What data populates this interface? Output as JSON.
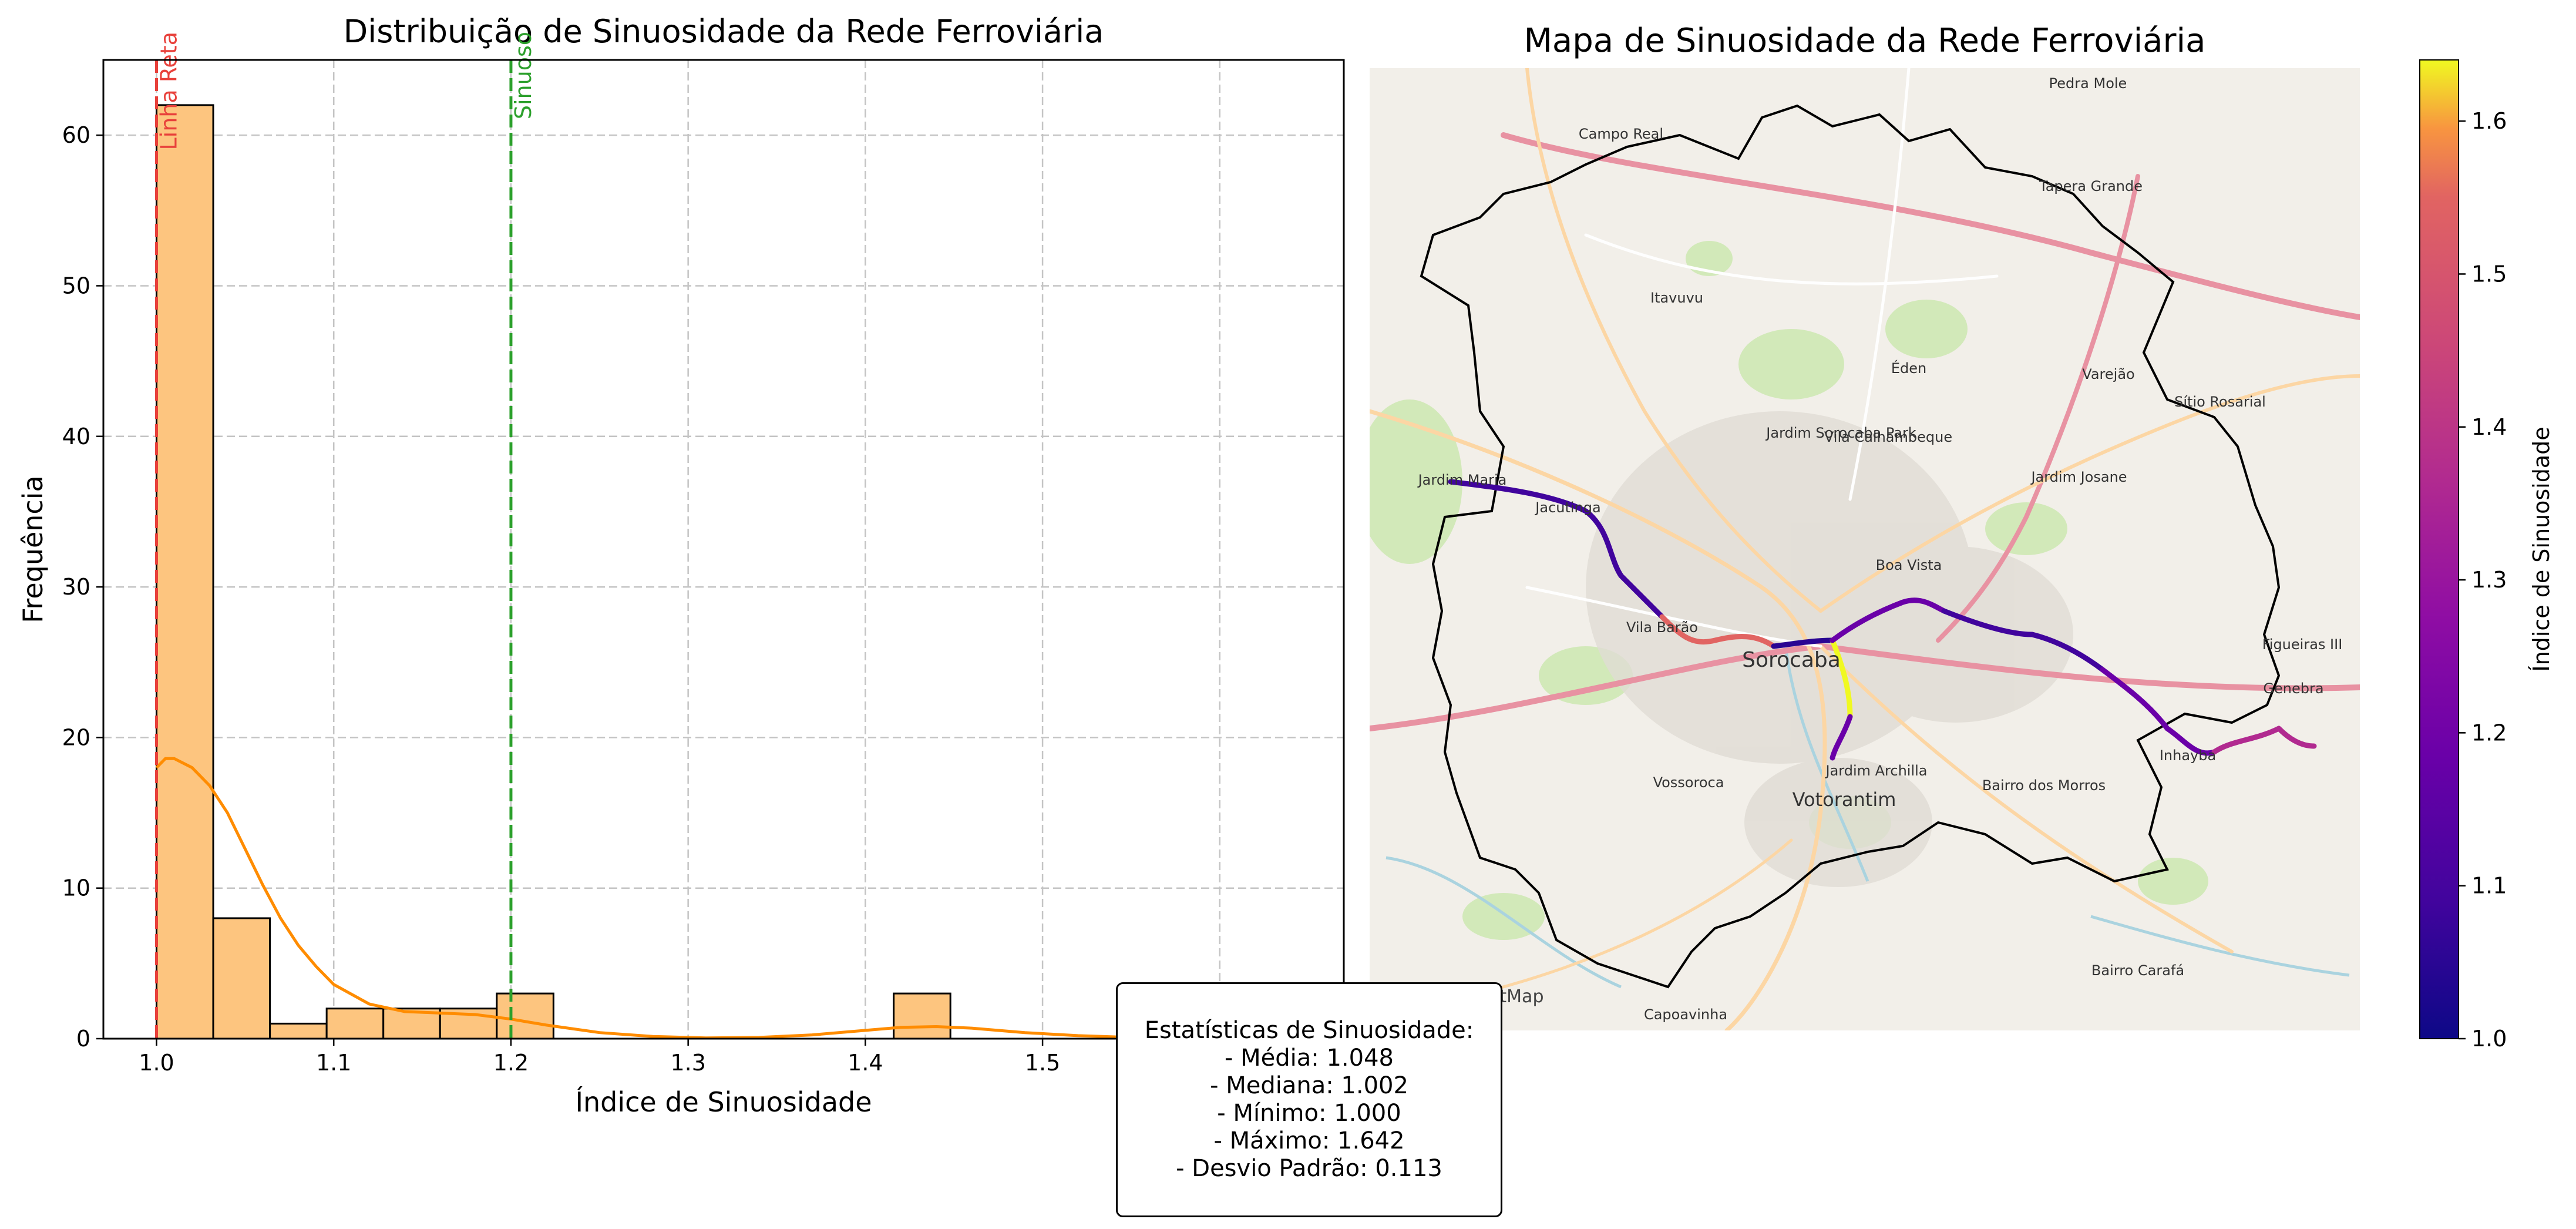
{
  "chart_data": [
    {
      "type": "bar",
      "title": "Distribuição de Sinuosidade da Rede Ferroviária",
      "xlabel": "Índice de Sinuosidade",
      "ylabel": "Frequência",
      "xlim": [
        0.97,
        1.67
      ],
      "ylim": [
        0,
        65
      ],
      "xticks": [
        "1.0",
        "1.1",
        "1.2",
        "1.3",
        "1.4",
        "1.5",
        "1.6"
      ],
      "yticks": [
        "0",
        "10",
        "20",
        "30",
        "40",
        "50",
        "60"
      ],
      "grid": true,
      "bins": [
        {
          "start": 1.0,
          "end": 1.032,
          "count": 62
        },
        {
          "start": 1.032,
          "end": 1.064,
          "count": 8
        },
        {
          "start": 1.064,
          "end": 1.096,
          "count": 1
        },
        {
          "start": 1.096,
          "end": 1.128,
          "count": 2
        },
        {
          "start": 1.128,
          "end": 1.16,
          "count": 2
        },
        {
          "start": 1.16,
          "end": 1.192,
          "count": 2
        },
        {
          "start": 1.192,
          "end": 1.224,
          "count": 3
        },
        {
          "start": 1.416,
          "end": 1.448,
          "count": 3
        }
      ],
      "kde": {
        "x": [
          1.0,
          1.005,
          1.01,
          1.02,
          1.03,
          1.04,
          1.05,
          1.06,
          1.07,
          1.08,
          1.09,
          1.1,
          1.12,
          1.14,
          1.16,
          1.18,
          1.2,
          1.22,
          1.25,
          1.28,
          1.31,
          1.34,
          1.37,
          1.4,
          1.42,
          1.44,
          1.46,
          1.49,
          1.52,
          1.55,
          1.58,
          1.61,
          1.64
        ],
        "y": [
          18.0,
          18.6,
          18.6,
          18.0,
          16.8,
          15.0,
          12.6,
          10.2,
          8.0,
          6.2,
          4.8,
          3.6,
          2.3,
          1.8,
          1.7,
          1.6,
          1.3,
          0.9,
          0.4,
          0.15,
          0.05,
          0.08,
          0.25,
          0.55,
          0.75,
          0.8,
          0.7,
          0.4,
          0.2,
          0.08,
          0.03,
          0.01,
          0.0
        ]
      },
      "reference_lines": [
        {
          "x": 1.0,
          "label": "Linha Reta",
          "color": "#e8413b"
        },
        {
          "x": 1.2,
          "label": "Sinuoso",
          "color": "#2ca02c"
        }
      ],
      "bar_color": "#fdc57f",
      "line_color": "#ff8c00"
    },
    {
      "type": "heatmap",
      "title": "Mapa de Sinuosidade da Rede Ferroviária",
      "colorbar_label": "Índice de Sinuosidade",
      "colorbar_range": [
        1.0,
        1.64
      ],
      "colorbar_ticks": [
        "1.0",
        "1.1",
        "1.2",
        "1.3",
        "1.4",
        "1.5",
        "1.6"
      ],
      "colormap": "plasma",
      "attribution": "(C) OpenStreetMap",
      "map_labels": [
        "Sorocaba",
        "Votorantim",
        "Jardim Maria",
        "Jacutinga",
        "Boa Vista",
        "Vila Barão",
        "Itavuvu",
        "Jardim Sorocaba Park",
        "Varejão",
        "Genebra",
        "Tapera Grande",
        "Pedra Mole",
        "Éden",
        "Capoavinha",
        "Bairro Carafá",
        "Bairro dos Morros",
        "Figueiras III",
        "Campo Real",
        "Sítio Rosarial",
        "Vila Calhambeque",
        "Jardim Josane",
        "Inhayba",
        "Vossoroca",
        "Jardim Archilla"
      ]
    }
  ],
  "stats": {
    "title": "Estatísticas de Sinuosidade:",
    "lines": [
      "- Média: 1.048",
      "- Mediana: 1.002",
      "- Mínimo: 1.000",
      "- Máximo: 1.642",
      "- Desvio Padrão: 0.113"
    ]
  }
}
